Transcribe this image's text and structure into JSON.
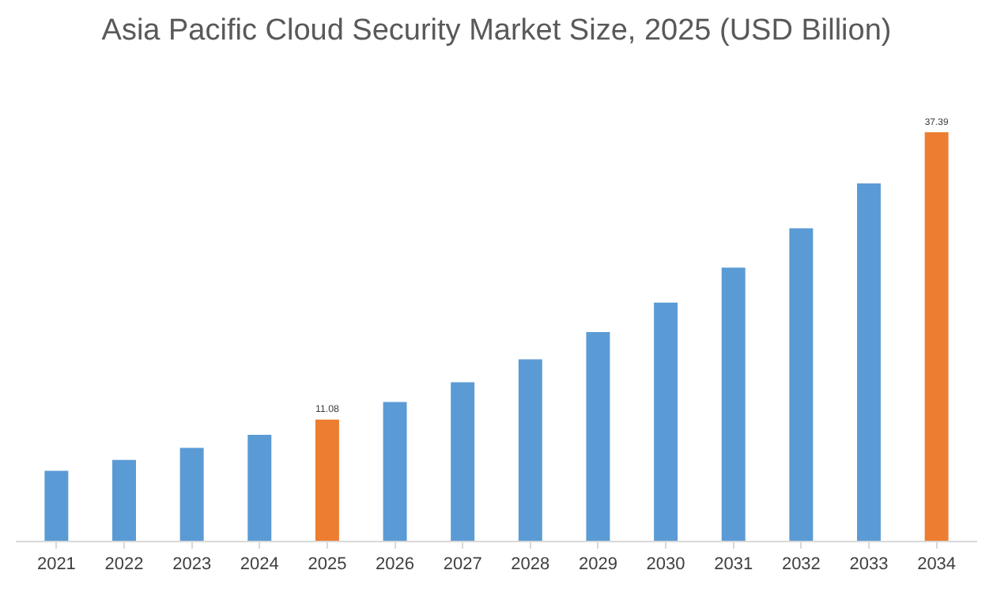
{
  "chart_data": {
    "type": "bar",
    "title": "Asia Pacific Cloud Security Market Size, 2025 (USD Billion)",
    "categories": [
      "2021",
      "2022",
      "2023",
      "2024",
      "2025",
      "2026",
      "2027",
      "2028",
      "2029",
      "2030",
      "2031",
      "2032",
      "2033",
      "2034"
    ],
    "values": [
      6.4,
      7.4,
      8.5,
      9.7,
      11.08,
      12.7,
      14.5,
      16.6,
      19.1,
      21.8,
      25.0,
      28.6,
      32.7,
      37.39
    ],
    "colors": [
      "#5b9bd5",
      "#5b9bd5",
      "#5b9bd5",
      "#5b9bd5",
      "#ed7d31",
      "#5b9bd5",
      "#5b9bd5",
      "#5b9bd5",
      "#5b9bd5",
      "#5b9bd5",
      "#5b9bd5",
      "#5b9bd5",
      "#5b9bd5",
      "#ed7d31"
    ],
    "value_labels": [
      null,
      null,
      null,
      null,
      "11.08",
      null,
      null,
      null,
      null,
      null,
      null,
      null,
      null,
      "37.39"
    ],
    "tick_labels": "x",
    "grid": false
  }
}
